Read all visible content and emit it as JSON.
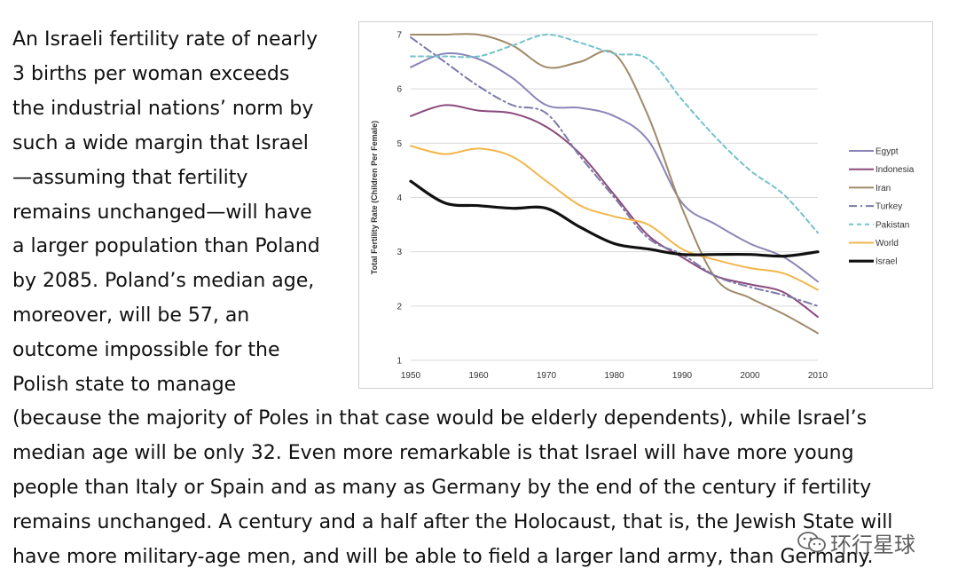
{
  "article": {
    "left_lines": [
      "An Israeli fertility rate of nearly",
      "3 births per woman exceeds",
      "the industrial nations’ norm by",
      "such a wide margin that Israel",
      "—assuming that fertility",
      "remains unchanged—will have",
      "a larger population than Poland",
      "by 2085. Poland’s median age,",
      "moreover, will be 57, an",
      "outcome impossible for the",
      "Polish state to manage"
    ],
    "full_lines": [
      "(because the majority of Poles in that case would be elderly dependents), while Israel’s",
      "median age will be only 32. Even more remarkable is that Israel will have more young",
      "people than Italy or Spain and as many as Germany by the end of the century if fertility",
      "remains unchanged. A century and a half after the Holocaust, that is, the Jewish State will",
      "have more military-age men, and will be able to field a larger land army, than Germany."
    ]
  },
  "watermark": {
    "text": "环行星球",
    "icon": "wechat-icon"
  },
  "chart_data": {
    "type": "line",
    "title": "",
    "xlabel": "",
    "ylabel": "Total Fertility Rate (Children Per Female)",
    "xlim": [
      1950,
      2010
    ],
    "ylim": [
      1,
      7
    ],
    "x_ticks": [
      1950,
      1960,
      1970,
      1980,
      1990,
      2000,
      2010
    ],
    "y_ticks": [
      1,
      2,
      3,
      4,
      5,
      6,
      7
    ],
    "grid": "horizontal",
    "legend_position": "right",
    "x": [
      1950,
      1955,
      1960,
      1965,
      1970,
      1975,
      1980,
      1985,
      1990,
      1995,
      2000,
      2005,
      2010
    ],
    "series": [
      {
        "name": "Egypt",
        "color": "#8a85b8",
        "dash": "solid",
        "width": 2,
        "values": [
          6.4,
          6.65,
          6.55,
          6.2,
          5.7,
          5.65,
          5.5,
          5.05,
          3.9,
          3.5,
          3.15,
          2.9,
          2.45
        ]
      },
      {
        "name": "Indonesia",
        "color": "#8b4a7d",
        "dash": "solid",
        "width": 2,
        "values": [
          5.5,
          5.7,
          5.6,
          5.55,
          5.3,
          4.8,
          4.05,
          3.3,
          2.9,
          2.55,
          2.4,
          2.25,
          1.8
        ]
      },
      {
        "name": "Iran",
        "color": "#a08967",
        "dash": "solid",
        "width": 2,
        "values": [
          7.0,
          7.0,
          7.0,
          6.8,
          6.4,
          6.5,
          6.65,
          5.5,
          3.8,
          2.5,
          2.15,
          1.85,
          1.5
        ]
      },
      {
        "name": "Turkey",
        "color": "#7b7aa8",
        "dash": "dashdot",
        "width": 2,
        "values": [
          6.95,
          6.5,
          6.05,
          5.7,
          5.55,
          4.75,
          4.0,
          3.25,
          2.95,
          2.55,
          2.35,
          2.2,
          2.0
        ]
      },
      {
        "name": "Pakistan",
        "color": "#74c2cc",
        "dash": "dash",
        "width": 2,
        "values": [
          6.6,
          6.6,
          6.6,
          6.8,
          7.0,
          6.85,
          6.65,
          6.55,
          5.8,
          5.1,
          4.5,
          4.05,
          3.35
        ]
      },
      {
        "name": "World",
        "color": "#f3b64b",
        "dash": "solid",
        "width": 2,
        "values": [
          4.95,
          4.8,
          4.9,
          4.75,
          4.3,
          3.85,
          3.65,
          3.5,
          3.05,
          2.85,
          2.7,
          2.6,
          2.3
        ]
      },
      {
        "name": "Israel",
        "color": "#111111",
        "dash": "solid",
        "width": 3.2,
        "values": [
          4.3,
          3.9,
          3.85,
          3.8,
          3.8,
          3.45,
          3.15,
          3.05,
          2.95,
          2.95,
          2.95,
          2.92,
          3.0
        ]
      }
    ]
  }
}
